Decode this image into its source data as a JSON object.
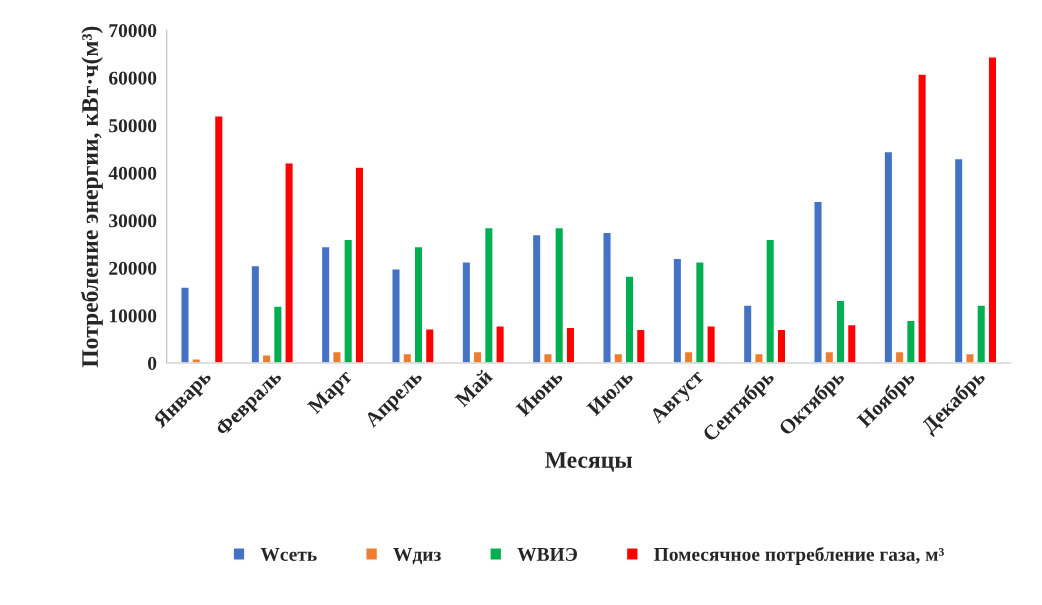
{
  "chart_data": {
    "type": "bar",
    "xlabel": "Месяцы",
    "ylabel": "Потребление энергии, кВт·ч(м³)",
    "categories": [
      "Январь",
      "Февраль",
      "Март",
      "Апрель",
      "Май",
      "Июнь",
      "Июль",
      "Август",
      "Сентябрь",
      "Октябрь",
      "Ноябрь",
      "Декабрь"
    ],
    "series": [
      {
        "name": "Wсеть",
        "color": "#4472c4",
        "values": [
          16000,
          20500,
          24500,
          19800,
          21300,
          27000,
          27500,
          22000,
          12200,
          34000,
          44500,
          43000
        ]
      },
      {
        "name": "Wдиз",
        "color": "#ed7d31",
        "values": [
          900,
          1700,
          2400,
          2000,
          2400,
          2000,
          2000,
          2400,
          2000,
          2400,
          2400,
          2000
        ]
      },
      {
        "name": "WВИЭ",
        "color": "#00b050",
        "values": [
          null,
          12000,
          26000,
          24500,
          28500,
          28500,
          18300,
          21300,
          26000,
          13200,
          9000,
          12200
        ]
      },
      {
        "name": "Помесячное потребление газа, м³",
        "color": "#ff0000",
        "values": [
          52000,
          42100,
          41200,
          7200,
          7800,
          7500,
          7100,
          7800,
          7100,
          8100,
          60800,
          64400
        ]
      }
    ],
    "ylim": [
      0,
      70000
    ],
    "yticks": [
      0,
      10000,
      20000,
      30000,
      40000,
      50000,
      60000,
      70000
    ],
    "grid": false,
    "legend": "bottom"
  }
}
